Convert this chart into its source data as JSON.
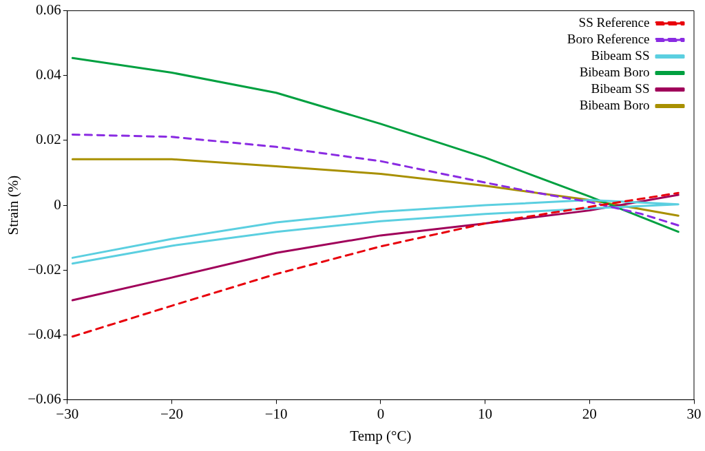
{
  "chart_data": {
    "type": "line",
    "xlabel": "Temp (°C)",
    "ylabel": "Strain (%)",
    "xlim": [
      -30,
      30
    ],
    "xticks": [
      -30,
      -20,
      -10,
      0,
      10,
      20,
      30
    ],
    "ylim": [
      -0.06,
      0.06
    ],
    "yticks": [
      -0.06,
      -0.04,
      -0.02,
      0,
      0.02,
      0.04,
      0.06
    ],
    "grid": false,
    "legend": "top right",
    "marker": "none",
    "series": [
      {
        "name": "SS Reference",
        "color": "#e8000b",
        "line_style": "dashed",
        "x": [
          -29.5,
          -20,
          -10,
          0,
          10,
          20,
          28.5
        ],
        "values": [
          -0.0405,
          -0.031,
          -0.0212,
          -0.0127,
          -0.0056,
          -0.0005,
          0.0038
        ]
      },
      {
        "name": "Boro Reference",
        "color": "#8a2be2",
        "line_style": "dashed",
        "x": [
          -29.5,
          -20,
          -10,
          0,
          10,
          15,
          20,
          25,
          28.5
        ],
        "values": [
          0.0218,
          0.0211,
          0.018,
          0.0136,
          0.007,
          0.0038,
          0.001,
          -0.0027,
          -0.0062
        ]
      },
      {
        "name": "Bibeam SS",
        "color": "#5bcfe0",
        "line_style": "solid",
        "x": [
          -29.5,
          -20,
          -10,
          0,
          10,
          20,
          28.5,
          20,
          10,
          0,
          -10,
          -20,
          -29.5
        ],
        "values": [
          -0.018,
          -0.0125,
          -0.0082,
          -0.0049,
          -0.0027,
          -0.001,
          0.0003,
          0.0016,
          0.0,
          -0.002,
          -0.0053,
          -0.0104,
          -0.0162
        ]
      },
      {
        "name": "Bibeam Boro",
        "color": "#00a040",
        "line_style": "solid",
        "x": [
          -29.5,
          -20,
          -10,
          0,
          10,
          20,
          28.5
        ],
        "values": [
          0.0454,
          0.0409,
          0.0347,
          0.0251,
          0.0147,
          0.0027,
          -0.0082
        ]
      },
      {
        "name": "Bibeam SS",
        "color": "#a0005a",
        "line_style": "solid",
        "x": [
          -29.5,
          -20,
          -10,
          0,
          10,
          20,
          28.5
        ],
        "values": [
          -0.0293,
          -0.0223,
          -0.0147,
          -0.0093,
          -0.0056,
          -0.0016,
          0.0032
        ]
      },
      {
        "name": "Bibeam Boro",
        "color": "#a89000",
        "line_style": "solid",
        "x": [
          -29.5,
          -20,
          -10,
          0,
          10,
          20,
          28.5
        ],
        "values": [
          0.0142,
          0.0142,
          0.012,
          0.0097,
          0.006,
          0.0016,
          -0.0032
        ]
      }
    ]
  }
}
